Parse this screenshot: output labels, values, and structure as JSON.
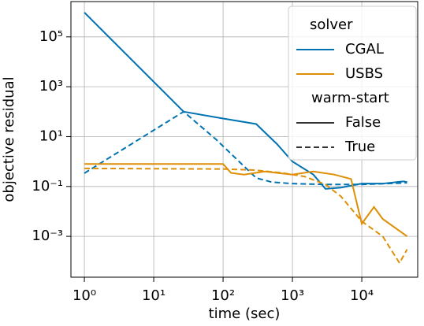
{
  "chart_data": {
    "type": "line",
    "xlabel": "time (sec)",
    "ylabel": "objective residual",
    "xscale": "log",
    "yscale": "log",
    "grid": true,
    "xlim": [
      0.64,
      64000
    ],
    "ylim": [
      2.3e-05,
      2600000.0
    ],
    "xticks": [
      {
        "value": 1,
        "label": "10⁰"
      },
      {
        "value": 10,
        "label": "10¹"
      },
      {
        "value": 100,
        "label": "10²"
      },
      {
        "value": 1000,
        "label": "10³"
      },
      {
        "value": 10000,
        "label": "10⁴"
      }
    ],
    "yticks": [
      {
        "value": 0.001,
        "label": "10⁻³"
      },
      {
        "value": 0.1,
        "label": "10⁻¹"
      },
      {
        "value": 10,
        "label": "10¹"
      },
      {
        "value": 1000,
        "label": "10³"
      },
      {
        "value": 100000,
        "label": "10⁵"
      }
    ],
    "legend": {
      "corner": "upper right",
      "hue_title": "solver",
      "style_title": "warm-start",
      "hue": [
        {
          "label": "CGAL",
          "color": "#0173b2"
        },
        {
          "label": "USBS",
          "color": "#de8f05"
        }
      ],
      "style": [
        {
          "label": "False",
          "dash": "none"
        },
        {
          "label": "True",
          "dash": "7,4"
        }
      ]
    },
    "series": [
      {
        "hue": 0,
        "style": 0,
        "x": [
          1,
          27,
          100,
          300,
          600,
          1000,
          2000,
          3000,
          5000,
          10000,
          20000,
          40000,
          45000
        ],
        "values": [
          950000,
          100,
          53,
          32,
          5,
          1,
          0.3,
          0.08,
          0.09,
          0.13,
          0.13,
          0.16,
          0.15
        ]
      },
      {
        "hue": 0,
        "style": 1,
        "x": [
          1,
          27,
          80,
          300,
          500,
          1000,
          3000,
          10000,
          45000
        ],
        "values": [
          0.34,
          100,
          7.5,
          0.22,
          0.15,
          0.13,
          0.12,
          0.12,
          0.14
        ]
      },
      {
        "hue": 1,
        "style": 0,
        "x": [
          1,
          100,
          130,
          200,
          400,
          1000,
          2000,
          4000,
          7000,
          10000,
          15000,
          20000,
          45000
        ],
        "values": [
          0.8,
          0.8,
          0.35,
          0.3,
          0.4,
          0.3,
          0.4,
          0.3,
          0.2,
          0.0032,
          0.015,
          0.005,
          0.001
        ]
      },
      {
        "hue": 1,
        "style": 1,
        "x": [
          1,
          100,
          300,
          700,
          1500,
          3000,
          5000,
          10000,
          20000,
          35000,
          45000
        ],
        "values": [
          0.53,
          0.5,
          0.45,
          0.35,
          0.25,
          0.12,
          0.04,
          0.004,
          0.001,
          8.5e-05,
          0.0003
        ]
      }
    ]
  }
}
